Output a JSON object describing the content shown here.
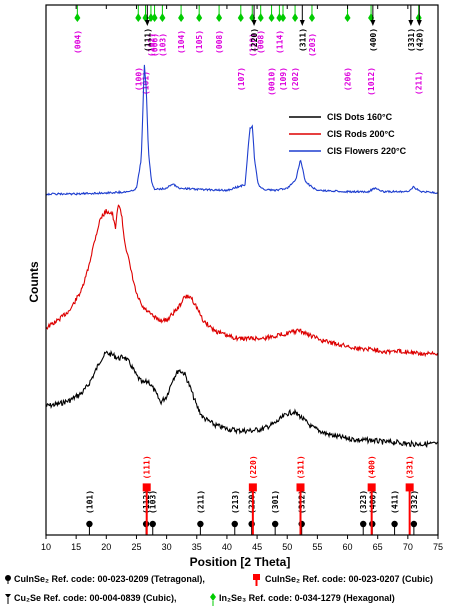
{
  "chart_data": {
    "type": "line",
    "xlabel": "Position [2 Theta]",
    "ylabel": "Counts",
    "xlim": [
      10,
      75
    ],
    "xticks": [
      "10",
      "15",
      "20",
      "25",
      "30",
      "35",
      "40",
      "45",
      "50",
      "55",
      "60",
      "65",
      "70",
      "75"
    ],
    "grid": false,
    "legend_position": "right-middle",
    "series": [
      {
        "name": "CIS Dots 160°C",
        "color": "#000000",
        "x": [
          10,
          12,
          14,
          16,
          17,
          18,
          19,
          20,
          21,
          22,
          23,
          24,
          25,
          26,
          27,
          28,
          29,
          30,
          31,
          32,
          33,
          34,
          35,
          36,
          38,
          40,
          42,
          44,
          46,
          48,
          50,
          51,
          52,
          53,
          54,
          56,
          58,
          60,
          62,
          64,
          66,
          68,
          70,
          72,
          74,
          75
        ],
        "y": [
          0.2,
          0.21,
          0.23,
          0.27,
          0.31,
          0.37,
          0.44,
          0.48,
          0.47,
          0.45,
          0.46,
          0.42,
          0.36,
          0.32,
          0.33,
          0.28,
          0.22,
          0.25,
          0.34,
          0.39,
          0.37,
          0.29,
          0.2,
          0.14,
          0.1,
          0.08,
          0.07,
          0.07,
          0.08,
          0.11,
          0.16,
          0.17,
          0.15,
          0.12,
          0.09,
          0.06,
          0.04,
          0.03,
          0.02,
          0.02,
          0.01,
          0.01,
          0.0,
          0.0,
          0.0,
          0.0
        ]
      },
      {
        "name": "CIS Rods 200°C",
        "color": "#dd0000",
        "x": [
          10,
          12,
          14,
          16,
          17,
          18,
          19,
          20,
          21,
          21.5,
          22,
          22.5,
          23,
          24,
          25,
          26,
          27,
          28,
          29,
          30,
          32,
          33,
          34,
          35,
          36,
          38,
          40,
          42,
          44,
          46,
          48,
          50,
          52,
          54,
          56,
          58,
          60,
          62,
          64,
          66,
          68,
          70,
          72,
          74,
          75
        ],
        "y": [
          0.1,
          0.13,
          0.17,
          0.25,
          0.33,
          0.43,
          0.52,
          0.55,
          0.54,
          0.48,
          0.58,
          0.54,
          0.44,
          0.33,
          0.23,
          0.18,
          0.16,
          0.14,
          0.13,
          0.13,
          0.18,
          0.22,
          0.22,
          0.18,
          0.13,
          0.09,
          0.07,
          0.06,
          0.06,
          0.06,
          0.07,
          0.08,
          0.09,
          0.07,
          0.05,
          0.04,
          0.03,
          0.02,
          0.02,
          0.01,
          0.01,
          0.01,
          0.0,
          0.0,
          0.0
        ]
      },
      {
        "name": "CIS Flowers 220°C",
        "color": "#1f3fcf",
        "x": [
          10,
          15,
          20,
          24,
          25,
          25.8,
          26.3,
          26.6,
          27,
          27.5,
          28,
          29,
          30,
          31,
          32,
          35,
          40,
          43,
          43.8,
          44.2,
          44.6,
          45.2,
          46,
          48,
          50,
          51.5,
          52.2,
          53,
          55,
          60,
          63.5,
          64.5,
          66,
          70,
          71,
          72,
          75
        ],
        "y": [
          0.0,
          0.0,
          0.01,
          0.02,
          0.05,
          0.3,
          1.1,
          0.92,
          0.35,
          0.1,
          0.04,
          0.04,
          0.05,
          0.09,
          0.05,
          0.04,
          0.03,
          0.08,
          0.55,
          0.58,
          0.28,
          0.08,
          0.04,
          0.03,
          0.05,
          0.13,
          0.3,
          0.1,
          0.03,
          0.02,
          0.02,
          0.05,
          0.02,
          0.02,
          0.06,
          0.02,
          0.01
        ]
      }
    ],
    "tetragonal_reference": {
      "label": "CuInSe₂ Ref. code: 00-023-0209 (Tetragonal),",
      "color": "#000000",
      "peaks": [
        {
          "x": 17.2,
          "hkl": "(101)"
        },
        {
          "x": 26.6,
          "hkl": "(112)"
        },
        {
          "x": 27.7,
          "hkl": "(103)"
        },
        {
          "x": 35.6,
          "hkl": "(211)"
        },
        {
          "x": 41.3,
          "hkl": "(213)"
        },
        {
          "x": 44.1,
          "hkl": "(220)"
        },
        {
          "x": 48.0,
          "hkl": "(301)"
        },
        {
          "x": 52.4,
          "hkl": "(312)"
        },
        {
          "x": 62.6,
          "hkl": "(323)"
        },
        {
          "x": 64.1,
          "hkl": "(400)"
        },
        {
          "x": 67.8,
          "hkl": "(411)"
        },
        {
          "x": 71.0,
          "hkl": "(332)"
        }
      ]
    },
    "cubic_reference": {
      "label": "CuInSe₂ Ref. code: 00-023-0207 (Cubic)",
      "color": "#ff0000",
      "peaks": [
        {
          "x": 26.7,
          "hkl": "(111)",
          "height": 0.85
        },
        {
          "x": 44.3,
          "hkl": "(220)",
          "height": 0.85
        },
        {
          "x": 52.2,
          "hkl": "(311)",
          "height": 0.85
        },
        {
          "x": 64.0,
          "hkl": "(400)",
          "height": 0.85
        },
        {
          "x": 70.3,
          "hkl": "(331)",
          "height": 0.85
        }
      ]
    },
    "cu2se_reference": {
      "label": "Cu₂Se Ref. code: 00-004-0839 (Cubic),",
      "color": "#000000",
      "peaks": [
        {
          "x": 26.8,
          "hkl": "(111)"
        },
        {
          "x": 44.5,
          "hkl": "(220)"
        },
        {
          "x": 52.5,
          "hkl": "(311)"
        },
        {
          "x": 64.2,
          "hkl": "(400)"
        },
        {
          "x": 70.5,
          "hkl": "(331)"
        },
        {
          "x": 71.9,
          "hkl": "(420)"
        }
      ]
    },
    "in2se3_reference": {
      "label": "In₂Se₃ Ref. code: 0-034-1279 (Hexagonal)",
      "color": "#00cc00",
      "hkl_color": "#dd00dd",
      "peaks": [
        {
          "x": 15.2,
          "hkl": "(004)",
          "pos": 1
        },
        {
          "x": 25.3,
          "hkl": "(100)",
          "pos": 3
        },
        {
          "x": 26.5,
          "hkl": "(101)",
          "pos": 4
        },
        {
          "x": 27.4,
          "hkl": "(102)",
          "pos": 2
        },
        {
          "x": 28.0,
          "hkl": "(006)",
          "pos": 2
        },
        {
          "x": 29.3,
          "hkl": "(103)",
          "pos": 2
        },
        {
          "x": 32.4,
          "hkl": "(104)",
          "pos": 1
        },
        {
          "x": 35.4,
          "hkl": "(105)",
          "pos": 1
        },
        {
          "x": 38.7,
          "hkl": "(008)",
          "pos": 1
        },
        {
          "x": 42.3,
          "hkl": "(107)",
          "pos": 3
        },
        {
          "x": 44.2,
          "hkl": "(110)",
          "pos": 2
        },
        {
          "x": 45.6,
          "hkl": "(008)",
          "pos": 1
        },
        {
          "x": 47.4,
          "hkl": "(0010)",
          "pos": 3
        },
        {
          "x": 48.7,
          "hkl": "(114)",
          "pos": 1
        },
        {
          "x": 49.3,
          "hkl": "(109)",
          "pos": 3
        },
        {
          "x": 51.3,
          "hkl": "(202)",
          "pos": 3
        },
        {
          "x": 54.1,
          "hkl": "(203)",
          "pos": 2
        },
        {
          "x": 60.0,
          "hkl": "(206)",
          "pos": 3
        },
        {
          "x": 63.9,
          "hkl": "(1012)",
          "pos": 3
        },
        {
          "x": 71.8,
          "hkl": "(211)",
          "pos": 4
        }
      ]
    }
  }
}
